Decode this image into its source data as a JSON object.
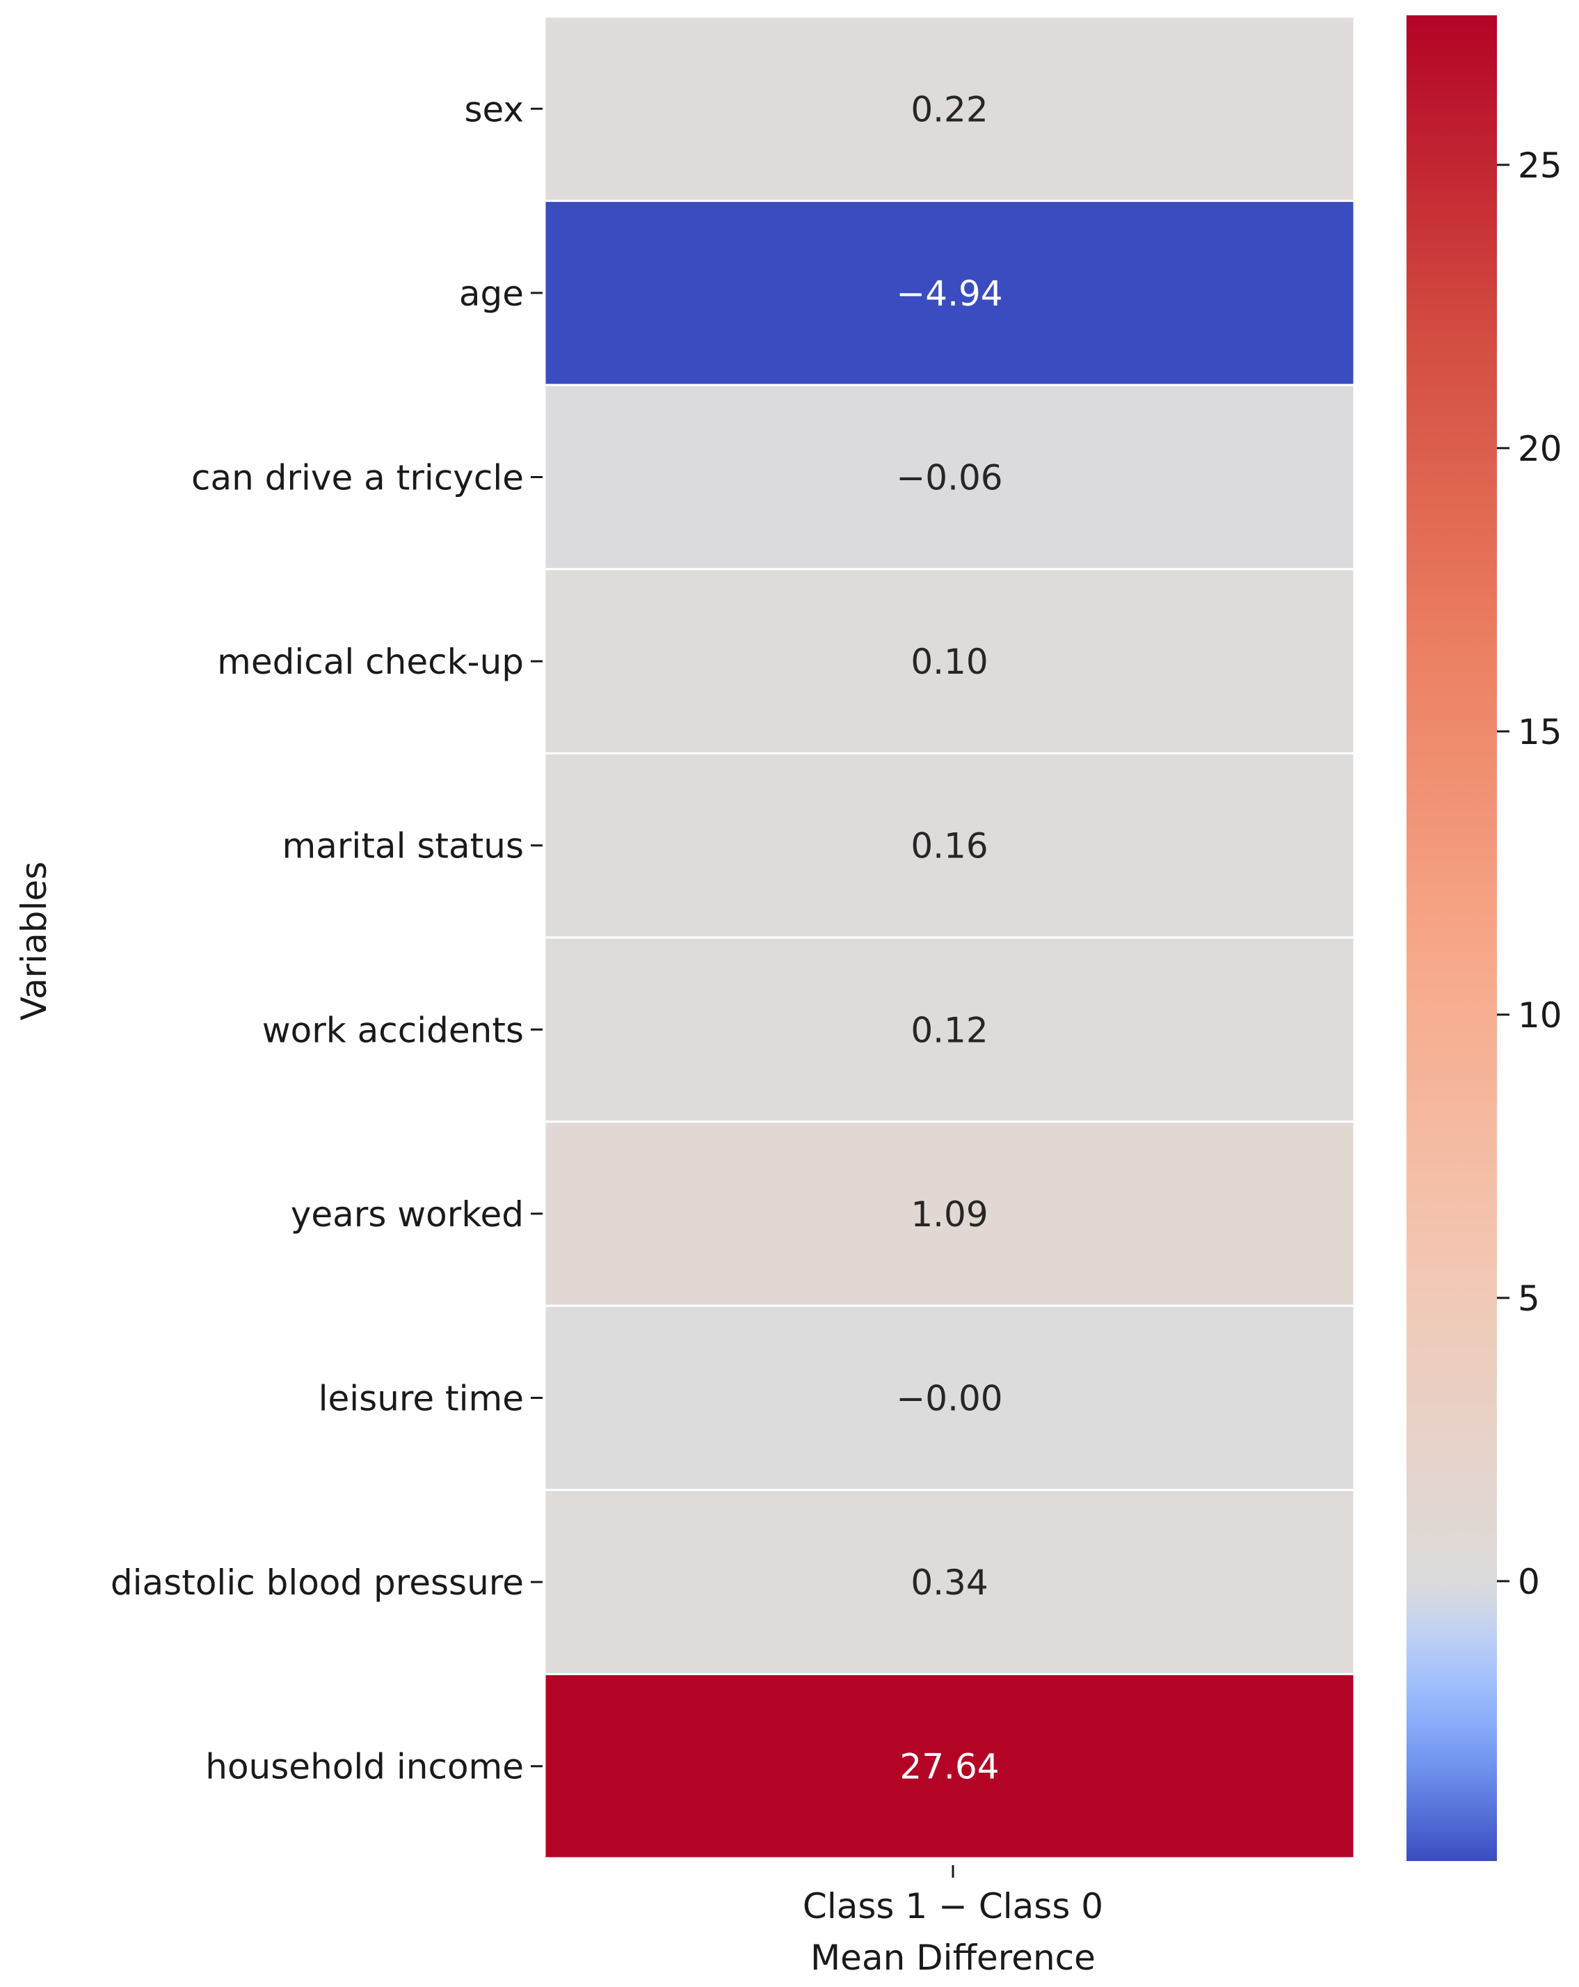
{
  "chart_data": {
    "type": "heatmap",
    "title": "",
    "ylabel": "Variables",
    "xlabel": "Mean Difference",
    "columns": [
      "Class 1 − Class 0"
    ],
    "rows": [
      {
        "label": "sex",
        "value": 0.22,
        "display": "0.22"
      },
      {
        "label": "age",
        "value": -4.94,
        "display": "−4.94"
      },
      {
        "label": "can drive a tricycle",
        "value": -0.06,
        "display": "−0.06"
      },
      {
        "label": "medical check-up",
        "value": 0.1,
        "display": "0.10"
      },
      {
        "label": "marital status",
        "value": 0.16,
        "display": "0.16"
      },
      {
        "label": "work accidents",
        "value": 0.12,
        "display": "0.12"
      },
      {
        "label": "years worked",
        "value": 1.09,
        "display": "1.09"
      },
      {
        "label": "leisure time",
        "value": -0.0,
        "display": "−0.00"
      },
      {
        "label": "diastolic blood pressure",
        "value": 0.34,
        "display": "0.34"
      },
      {
        "label": "household income",
        "value": 27.64,
        "display": "27.64"
      }
    ],
    "colorbar": {
      "colormap": "coolwarm",
      "center": 0,
      "range": [
        -4.94,
        27.64
      ],
      "ticks": [
        0,
        5,
        10,
        15,
        20,
        25
      ],
      "tick_labels": [
        "0",
        "5",
        "10",
        "15",
        "20",
        "25"
      ]
    },
    "colors": {
      "low": "#c5d6f2",
      "mid": "#dddcdc",
      "high": "#b40426",
      "text_dark": "#262626",
      "text_light": "#ffffff"
    }
  }
}
